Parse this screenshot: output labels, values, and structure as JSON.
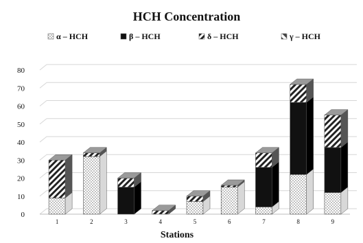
{
  "chart_data": {
    "type": "bar",
    "stacked": true,
    "style": "3d-stacked-column",
    "title": "HCH Concentration",
    "xlabel": "Stations",
    "ylabel": "",
    "categories": [
      "1",
      "2",
      "3",
      "4",
      "5",
      "6",
      "7",
      "8",
      "9"
    ],
    "ylim": [
      0,
      80
    ],
    "yticks": [
      "0",
      "10",
      "20",
      "30",
      "40",
      "50",
      "60",
      "70",
      "80"
    ],
    "grid": true,
    "legend_position": "top",
    "series": [
      {
        "name": "α – HCH",
        "pattern": "dotted",
        "values": [
          9,
          32,
          0,
          0,
          7,
          15,
          4,
          22,
          12
        ]
      },
      {
        "name": "β – HCH",
        "pattern": "solid-black",
        "values": [
          0,
          0,
          15,
          0,
          0,
          0,
          22,
          40,
          25
        ]
      },
      {
        "name": "δ – HCH",
        "pattern": "diagonal-hatch",
        "values": [
          21,
          2,
          5,
          2,
          3,
          1,
          8,
          10,
          18
        ]
      },
      {
        "name": "γ – HCH",
        "pattern": "coarse-hatch",
        "values": [
          0,
          0,
          0,
          0,
          0,
          0,
          0,
          0,
          0
        ]
      }
    ]
  }
}
